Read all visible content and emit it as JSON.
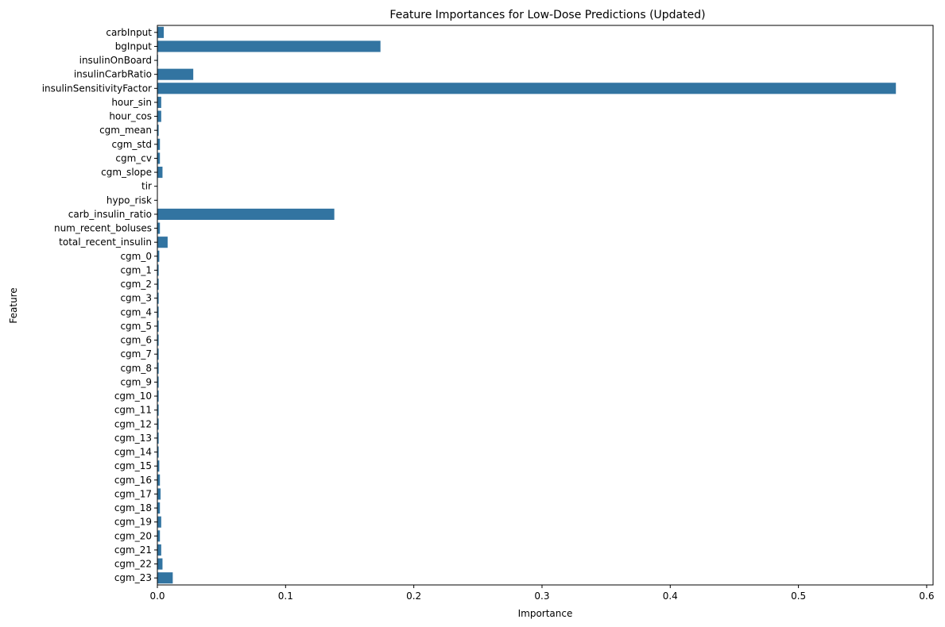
{
  "chart_data": {
    "type": "bar",
    "orientation": "horizontal",
    "title": "Feature Importances for Low-Dose Predictions (Updated)",
    "xlabel": "Importance",
    "ylabel": "Feature",
    "xlim": [
      0,
      0.605
    ],
    "xticks": [
      "0.0",
      "0.1",
      "0.2",
      "0.3",
      "0.4",
      "0.5",
      "0.6"
    ],
    "xtick_values": [
      0,
      0.1,
      0.2,
      0.3,
      0.4,
      0.5,
      0.6
    ],
    "grid": false,
    "bar_color": "#3274a1",
    "categories": [
      "carbInput",
      "bgInput",
      "insulinOnBoard",
      "insulinCarbRatio",
      "insulinSensitivityFactor",
      "hour_sin",
      "hour_cos",
      "cgm_mean",
      "cgm_std",
      "cgm_cv",
      "cgm_slope",
      "tir",
      "hypo_risk",
      "carb_insulin_ratio",
      "num_recent_boluses",
      "total_recent_insulin",
      "cgm_0",
      "cgm_1",
      "cgm_2",
      "cgm_3",
      "cgm_4",
      "cgm_5",
      "cgm_6",
      "cgm_7",
      "cgm_8",
      "cgm_9",
      "cgm_10",
      "cgm_11",
      "cgm_12",
      "cgm_13",
      "cgm_14",
      "cgm_15",
      "cgm_16",
      "cgm_17",
      "cgm_18",
      "cgm_19",
      "cgm_20",
      "cgm_21",
      "cgm_22",
      "cgm_23"
    ],
    "values": [
      0.005,
      0.174,
      0.0005,
      0.028,
      0.576,
      0.003,
      0.003,
      0.001,
      0.002,
      0.002,
      0.004,
      0.0,
      0.0,
      0.138,
      0.002,
      0.008,
      0.0015,
      0.001,
      0.001,
      0.001,
      0.001,
      0.001,
      0.001,
      0.001,
      0.001,
      0.001,
      0.001,
      0.001,
      0.001,
      0.001,
      0.001,
      0.0015,
      0.002,
      0.0025,
      0.002,
      0.003,
      0.002,
      0.003,
      0.004,
      0.012
    ]
  }
}
